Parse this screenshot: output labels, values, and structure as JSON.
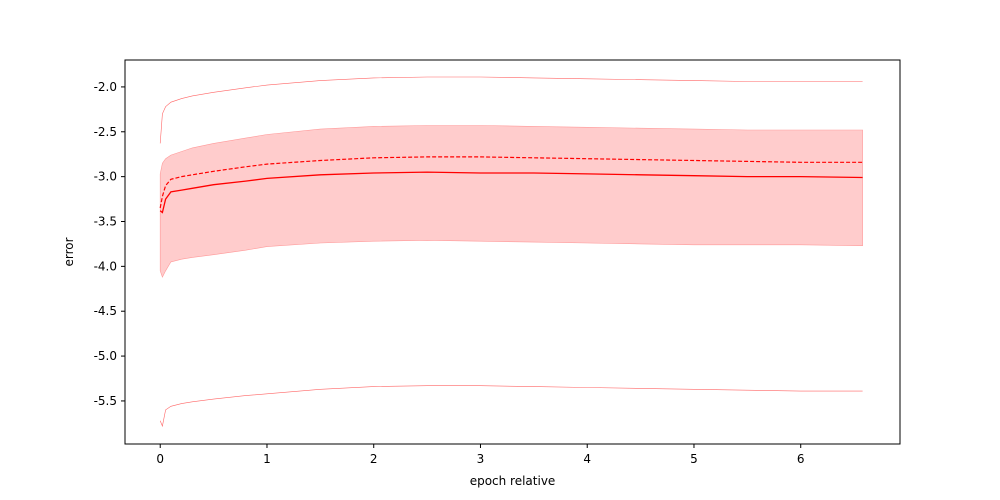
{
  "chart_data": {
    "type": "line",
    "title": "",
    "xlabel": "epoch relative",
    "ylabel": "error",
    "xlim": [
      -0.33,
      6.93
    ],
    "ylim": [
      -5.98,
      -1.7
    ],
    "grid": false,
    "legend": "none",
    "x_ticks": [
      "0",
      "1",
      "2",
      "3",
      "4",
      "5",
      "6"
    ],
    "y_ticks": [
      "-2.0",
      "-2.5",
      "-3.0",
      "-3.5",
      "-4.0",
      "-4.5",
      "-5.0",
      "-5.5"
    ],
    "colors": {
      "line": "#ff0000",
      "band": "#ffcccc",
      "band_edge": "#ff9999",
      "envelope": "#ff6666"
    },
    "series": [
      {
        "role": "max",
        "style": "thin",
        "x": [
          0.0,
          0.02,
          0.05,
          0.1,
          0.2,
          0.3,
          0.5,
          0.8,
          1.0,
          1.5,
          2.0,
          2.5,
          3.0,
          3.5,
          4.0,
          4.5,
          5.0,
          5.5,
          6.0,
          6.58
        ],
        "y": [
          -2.63,
          -2.3,
          -2.22,
          -2.17,
          -2.13,
          -2.1,
          -2.06,
          -2.01,
          -1.98,
          -1.93,
          -1.9,
          -1.89,
          -1.89,
          -1.9,
          -1.91,
          -1.92,
          -1.93,
          -1.94,
          -1.94,
          -1.94
        ]
      },
      {
        "role": "band_upper",
        "x": [
          0.0,
          0.02,
          0.05,
          0.1,
          0.2,
          0.3,
          0.5,
          0.8,
          1.0,
          1.5,
          2.0,
          2.5,
          3.0,
          3.5,
          4.0,
          4.5,
          5.0,
          5.5,
          6.0,
          6.58
        ],
        "y": [
          -2.97,
          -2.85,
          -2.8,
          -2.76,
          -2.72,
          -2.68,
          -2.63,
          -2.57,
          -2.53,
          -2.47,
          -2.44,
          -2.43,
          -2.43,
          -2.44,
          -2.45,
          -2.46,
          -2.47,
          -2.48,
          -2.48,
          -2.48
        ]
      },
      {
        "role": "band_lower",
        "x": [
          0.0,
          0.02,
          0.05,
          0.1,
          0.2,
          0.3,
          0.5,
          0.8,
          1.0,
          1.5,
          2.0,
          2.5,
          3.0,
          3.5,
          4.0,
          4.5,
          5.0,
          5.5,
          6.0,
          6.58
        ],
        "y": [
          -4.05,
          -4.12,
          -4.05,
          -3.95,
          -3.92,
          -3.9,
          -3.87,
          -3.82,
          -3.78,
          -3.74,
          -3.72,
          -3.71,
          -3.72,
          -3.73,
          -3.74,
          -3.75,
          -3.76,
          -3.76,
          -3.76,
          -3.77
        ]
      },
      {
        "role": "mean",
        "style": "dashed",
        "x": [
          0.0,
          0.02,
          0.05,
          0.1,
          0.2,
          0.3,
          0.5,
          0.8,
          1.0,
          1.5,
          2.0,
          2.5,
          3.0,
          3.5,
          4.0,
          4.5,
          5.0,
          5.5,
          6.0,
          6.58
        ],
        "y": [
          -3.35,
          -3.22,
          -3.1,
          -3.03,
          -3.0,
          -2.98,
          -2.94,
          -2.89,
          -2.86,
          -2.82,
          -2.79,
          -2.78,
          -2.78,
          -2.79,
          -2.8,
          -2.81,
          -2.82,
          -2.83,
          -2.84,
          -2.84
        ]
      },
      {
        "role": "median",
        "style": "solid",
        "x": [
          0.0,
          0.02,
          0.05,
          0.1,
          0.2,
          0.3,
          0.5,
          0.8,
          1.0,
          1.5,
          2.0,
          2.5,
          3.0,
          3.5,
          4.0,
          4.5,
          5.0,
          5.5,
          6.0,
          6.58
        ],
        "y": [
          -3.38,
          -3.4,
          -3.25,
          -3.17,
          -3.15,
          -3.13,
          -3.09,
          -3.05,
          -3.02,
          -2.98,
          -2.96,
          -2.95,
          -2.96,
          -2.96,
          -2.97,
          -2.98,
          -2.99,
          -3.0,
          -3.0,
          -3.01
        ]
      },
      {
        "role": "min",
        "style": "thin-noisy",
        "x": [
          0.0,
          0.02,
          0.05,
          0.1,
          0.2,
          0.3,
          0.5,
          0.8,
          1.0,
          1.5,
          2.0,
          2.5,
          3.0,
          3.5,
          4.0,
          4.5,
          5.0,
          5.5,
          6.0,
          6.58
        ],
        "y": [
          -5.72,
          -5.78,
          -5.6,
          -5.56,
          -5.53,
          -5.51,
          -5.48,
          -5.44,
          -5.42,
          -5.37,
          -5.34,
          -5.33,
          -5.33,
          -5.34,
          -5.35,
          -5.36,
          -5.37,
          -5.38,
          -5.39,
          -5.39
        ]
      }
    ]
  }
}
